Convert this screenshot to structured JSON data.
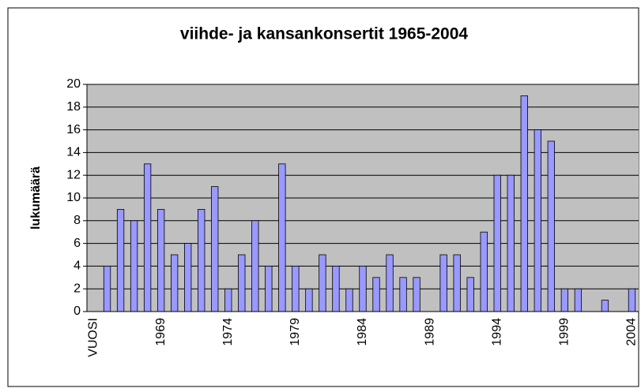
{
  "chart_data": {
    "type": "bar",
    "title": "viihde- ja kansankonsertit 1965-2004",
    "y_label": "lukumäärä",
    "categories": [
      "VUOSI",
      null,
      null,
      null,
      null,
      "1969",
      null,
      null,
      null,
      null,
      "1974",
      null,
      null,
      null,
      null,
      "1979",
      null,
      null,
      null,
      null,
      "1984",
      null,
      null,
      null,
      null,
      "1989",
      null,
      null,
      null,
      null,
      "1994",
      null,
      null,
      null,
      null,
      "1999",
      null,
      null,
      null,
      null,
      "2004"
    ],
    "values": [
      null,
      4,
      9,
      8,
      13,
      9,
      5,
      6,
      9,
      11,
      2,
      5,
      8,
      4,
      13,
      4,
      2,
      5,
      4,
      2,
      4,
      3,
      5,
      3,
      3,
      0,
      5,
      5,
      3,
      7,
      12,
      12,
      19,
      16,
      15,
      2,
      2,
      0,
      1,
      0,
      2
    ],
    "color": "#9999ff",
    "ylim": [
      0,
      20
    ],
    "yticks": [
      0,
      2,
      4,
      6,
      8,
      10,
      12,
      14,
      16,
      18,
      20
    ],
    "grid": true
  }
}
